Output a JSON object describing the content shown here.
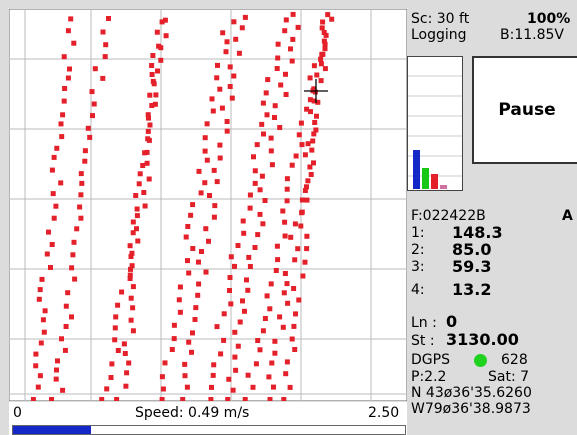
{
  "status": {
    "scale": "Sc:  30 ft",
    "percent": "100%",
    "mode": "Logging",
    "battery": "B:11.85V"
  },
  "button": "Pause",
  "readings": {
    "file": "F:022422B",
    "flag": "A",
    "rows": [
      [
        "1:",
        "148.3"
      ],
      [
        "2:",
        "85.0"
      ],
      [
        "3:",
        "59.3"
      ],
      [
        "4:",
        "13.2"
      ]
    ],
    "line_label": "Ln :",
    "line_value": "0",
    "station_label": "St :",
    "station_value": "3130.00",
    "gps": "DGPS",
    "gps_count": "628",
    "pdop": "P:2.2",
    "sats": "Sat:  7",
    "north": "N 43ø36'35.6260",
    "west": "W79ø36'38.9873"
  },
  "speed_bar": {
    "min": "0",
    "label": "Speed: 0.49 m/s",
    "max": "2.50"
  }
}
